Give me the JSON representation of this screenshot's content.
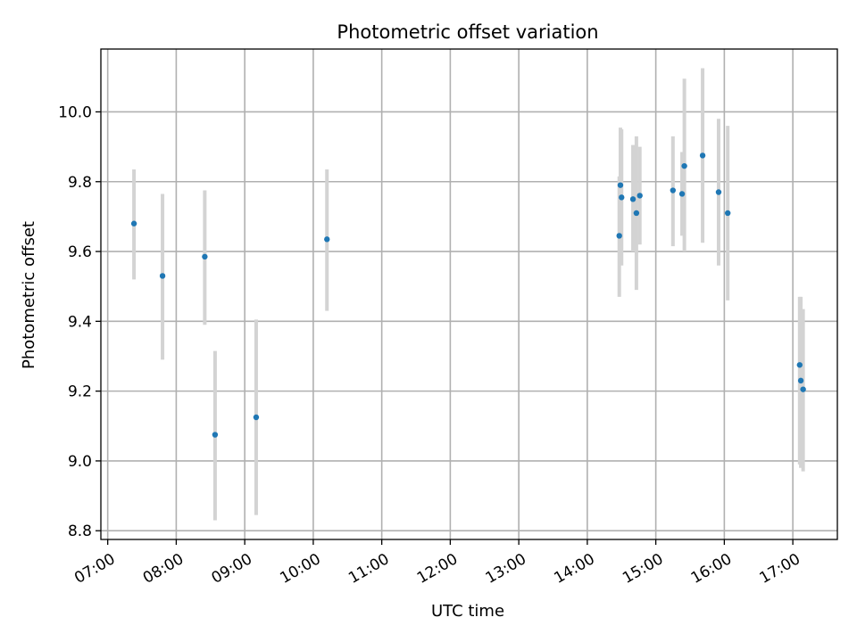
{
  "chart_data": {
    "type": "scatter",
    "title": "Photometric offset variation",
    "xlabel": "UTC time",
    "ylabel": "Photometric offset",
    "x_tick_labels": [
      "07:00",
      "08:00",
      "09:00",
      "10:00",
      "11:00",
      "12:00",
      "13:00",
      "14:00",
      "15:00",
      "16:00",
      "17:00"
    ],
    "y_tick_labels": [
      "8.8",
      "9.0",
      "9.2",
      "9.4",
      "9.6",
      "9.8",
      "10.0"
    ],
    "xlim": [
      "06:54",
      "17:39"
    ],
    "ylim": [
      8.775,
      10.18
    ],
    "grid": true,
    "marker_color": "#1f77b4",
    "errorbar_color": "#d3d3d3",
    "points": [
      {
        "time": "07:23",
        "y": 9.68,
        "low": 9.52,
        "high": 9.835
      },
      {
        "time": "07:48",
        "y": 9.53,
        "low": 9.29,
        "high": 9.765
      },
      {
        "time": "08:25",
        "y": 9.585,
        "low": 9.39,
        "high": 9.775
      },
      {
        "time": "08:34",
        "y": 9.075,
        "low": 8.83,
        "high": 9.315
      },
      {
        "time": "09:10",
        "y": 9.125,
        "low": 8.845,
        "high": 9.405
      },
      {
        "time": "10:12",
        "y": 9.635,
        "low": 9.43,
        "high": 9.835
      },
      {
        "time": "14:28",
        "y": 9.645,
        "low": 9.47,
        "high": 9.815
      },
      {
        "time": "14:29",
        "y": 9.79,
        "low": 9.58,
        "high": 9.955
      },
      {
        "time": "14:30",
        "y": 9.755,
        "low": 9.56,
        "high": 9.95
      },
      {
        "time": "14:40",
        "y": 9.75,
        "low": 9.6,
        "high": 9.905
      },
      {
        "time": "14:43",
        "y": 9.71,
        "low": 9.49,
        "high": 9.93
      },
      {
        "time": "14:46",
        "y": 9.76,
        "low": 9.62,
        "high": 9.9
      },
      {
        "time": "15:15",
        "y": 9.775,
        "low": 9.615,
        "high": 9.93
      },
      {
        "time": "15:23",
        "y": 9.765,
        "low": 9.645,
        "high": 9.885
      },
      {
        "time": "15:25",
        "y": 9.845,
        "low": 9.6,
        "high": 10.095
      },
      {
        "time": "15:41",
        "y": 9.875,
        "low": 9.625,
        "high": 10.125
      },
      {
        "time": "15:55",
        "y": 9.77,
        "low": 9.56,
        "high": 9.98
      },
      {
        "time": "16:03",
        "y": 9.71,
        "low": 9.46,
        "high": 9.96
      },
      {
        "time": "17:06",
        "y": 9.275,
        "low": 8.99,
        "high": 9.47
      },
      {
        "time": "17:07",
        "y": 9.23,
        "low": 8.98,
        "high": 9.47
      },
      {
        "time": "17:09",
        "y": 9.205,
        "low": 8.97,
        "high": 9.435
      }
    ]
  }
}
